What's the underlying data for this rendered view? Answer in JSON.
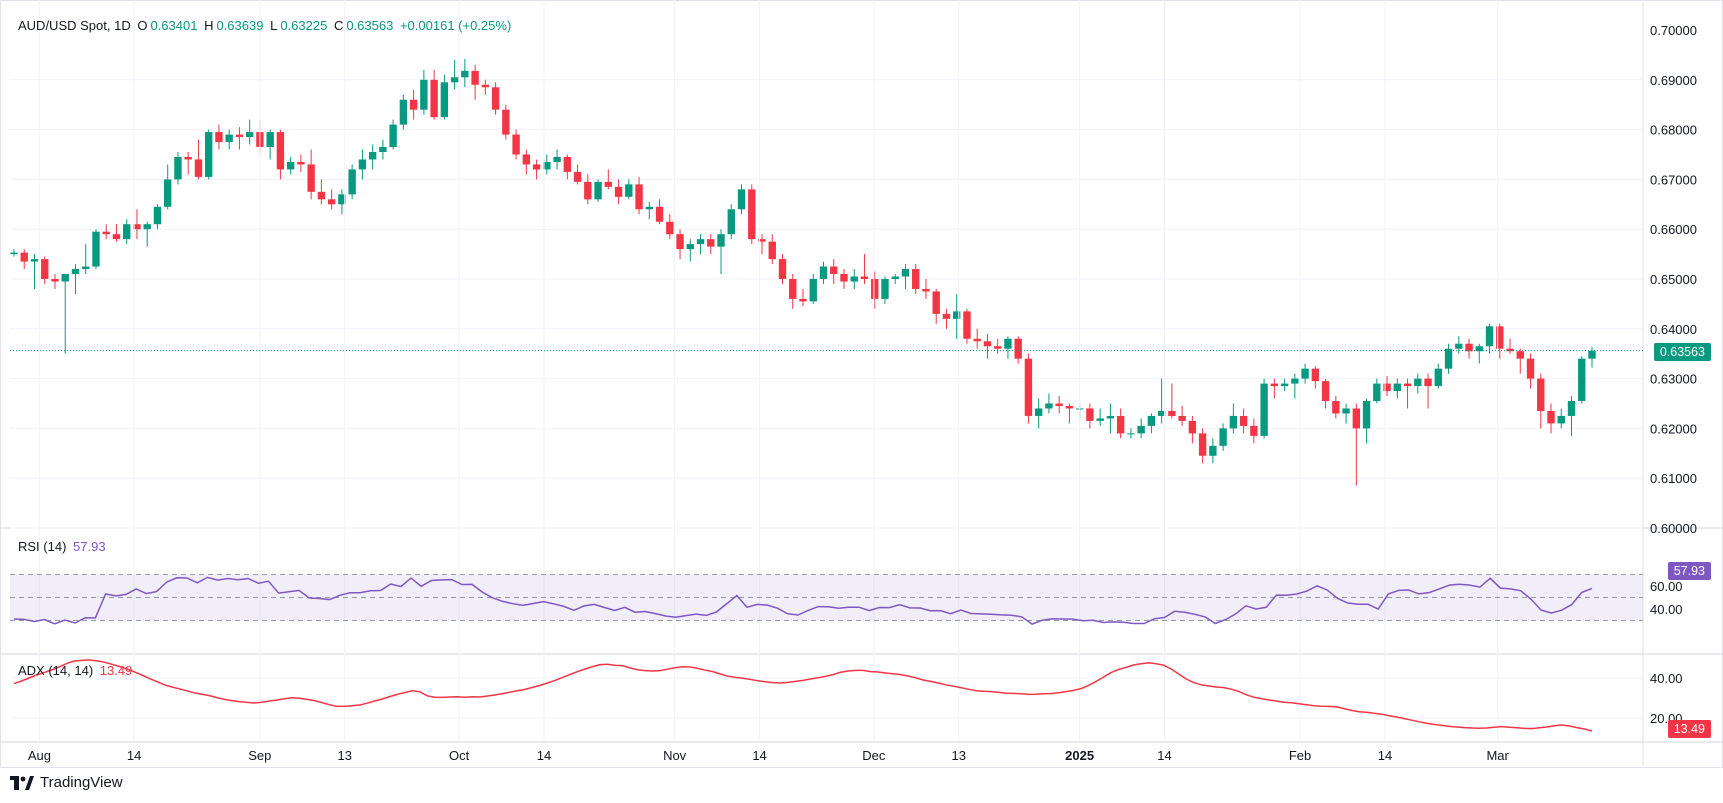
{
  "header": {
    "symbol": "AUD/USD Spot, 1D",
    "open_label": "O",
    "open": "0.63401",
    "high_label": "H",
    "high": "0.63639",
    "low_label": "L",
    "low": "0.63225",
    "close_label": "C",
    "close": "0.63563",
    "change": "+0.00161 (+0.25%)"
  },
  "price_tag": "0.63563",
  "rsi": {
    "label": "RSI (14)",
    "value": "57.93"
  },
  "adx": {
    "label": "ADX (14, 14)",
    "value": "13.49"
  },
  "brand": "TradingView",
  "colors": {
    "up": "#089981",
    "down": "#f23645",
    "rsi": "#7e57c2",
    "adx": "#f23645"
  },
  "chart_data": {
    "type": "candlestick",
    "x_ticks": [
      "Aug",
      "14",
      "Sep",
      "13",
      "Oct",
      "14",
      "Nov",
      "14",
      "Dec",
      "13",
      "2025",
      "14",
      "Feb",
      "14",
      "Mar"
    ],
    "price_axis": [
      "0.70000",
      "0.69000",
      "0.68000",
      "0.67000",
      "0.66000",
      "0.65000",
      "0.64000",
      "0.63000",
      "0.62000",
      "0.61000",
      "0.60000"
    ],
    "price_range": [
      0.6,
      0.7
    ],
    "last_price": 0.63563,
    "rsi_axis": [
      "60.00",
      "40.00"
    ],
    "rsi_bands": [
      30,
      50,
      70
    ],
    "adx_axis": [
      "40.00",
      "20.00"
    ],
    "candles": [
      [
        0.655,
        0.656,
        0.6545,
        0.6553
      ],
      [
        0.6553,
        0.656,
        0.652,
        0.6535
      ],
      [
        0.6535,
        0.655,
        0.648,
        0.654
      ],
      [
        0.654,
        0.6545,
        0.649,
        0.65
      ],
      [
        0.65,
        0.651,
        0.648,
        0.6495
      ],
      [
        0.6495,
        0.6505,
        0.635,
        0.651
      ],
      [
        0.651,
        0.653,
        0.647,
        0.652
      ],
      [
        0.652,
        0.657,
        0.651,
        0.6525
      ],
      [
        0.6525,
        0.66,
        0.652,
        0.6595
      ],
      [
        0.6595,
        0.661,
        0.658,
        0.659
      ],
      [
        0.659,
        0.661,
        0.6575,
        0.658
      ],
      [
        0.658,
        0.662,
        0.657,
        0.661
      ],
      [
        0.661,
        0.664,
        0.658,
        0.66
      ],
      [
        0.66,
        0.6615,
        0.6565,
        0.661
      ],
      [
        0.661,
        0.665,
        0.66,
        0.6645
      ],
      [
        0.6645,
        0.673,
        0.664,
        0.67
      ],
      [
        0.67,
        0.6755,
        0.669,
        0.6745
      ],
      [
        0.6745,
        0.6755,
        0.671,
        0.674
      ],
      [
        0.674,
        0.678,
        0.67,
        0.6705
      ],
      [
        0.6705,
        0.68,
        0.67,
        0.6795
      ],
      [
        0.6795,
        0.681,
        0.676,
        0.6775
      ],
      [
        0.6775,
        0.68,
        0.676,
        0.679
      ],
      [
        0.679,
        0.6805,
        0.676,
        0.6785
      ],
      [
        0.6785,
        0.682,
        0.677,
        0.6795
      ],
      [
        0.6795,
        0.682,
        0.675,
        0.6765
      ],
      [
        0.6765,
        0.68,
        0.674,
        0.6795
      ],
      [
        0.6795,
        0.68,
        0.67,
        0.672
      ],
      [
        0.672,
        0.6745,
        0.671,
        0.6735
      ],
      [
        0.6735,
        0.675,
        0.6715,
        0.673
      ],
      [
        0.673,
        0.676,
        0.666,
        0.6675
      ],
      [
        0.6675,
        0.67,
        0.665,
        0.666
      ],
      [
        0.666,
        0.668,
        0.664,
        0.665
      ],
      [
        0.665,
        0.668,
        0.663,
        0.667
      ],
      [
        0.667,
        0.673,
        0.666,
        0.672
      ],
      [
        0.672,
        0.676,
        0.67,
        0.674
      ],
      [
        0.674,
        0.677,
        0.672,
        0.6755
      ],
      [
        0.6755,
        0.678,
        0.674,
        0.6765
      ],
      [
        0.6765,
        0.682,
        0.676,
        0.681
      ],
      [
        0.681,
        0.687,
        0.68,
        0.686
      ],
      [
        0.686,
        0.688,
        0.682,
        0.684
      ],
      [
        0.684,
        0.692,
        0.683,
        0.69
      ],
      [
        0.69,
        0.692,
        0.682,
        0.6825
      ],
      [
        0.6825,
        0.691,
        0.682,
        0.6895
      ],
      [
        0.6895,
        0.694,
        0.688,
        0.6905
      ],
      [
        0.6905,
        0.6942,
        0.6885,
        0.6918
      ],
      [
        0.6918,
        0.693,
        0.686,
        0.689
      ],
      [
        0.689,
        0.69,
        0.687,
        0.6885
      ],
      [
        0.6885,
        0.6895,
        0.683,
        0.684
      ],
      [
        0.684,
        0.685,
        0.678,
        0.679
      ],
      [
        0.679,
        0.68,
        0.674,
        0.675
      ],
      [
        0.675,
        0.676,
        0.671,
        0.673
      ],
      [
        0.673,
        0.674,
        0.67,
        0.672
      ],
      [
        0.672,
        0.675,
        0.671,
        0.6735
      ],
      [
        0.6735,
        0.676,
        0.672,
        0.6745
      ],
      [
        0.6745,
        0.675,
        0.67,
        0.6715
      ],
      [
        0.6715,
        0.673,
        0.669,
        0.6695
      ],
      [
        0.6695,
        0.671,
        0.665,
        0.666
      ],
      [
        0.666,
        0.67,
        0.6655,
        0.6695
      ],
      [
        0.6695,
        0.672,
        0.668,
        0.6685
      ],
      [
        0.6685,
        0.67,
        0.665,
        0.6665
      ],
      [
        0.6665,
        0.67,
        0.666,
        0.669
      ],
      [
        0.669,
        0.6705,
        0.663,
        0.664
      ],
      [
        0.664,
        0.6655,
        0.662,
        0.6645
      ],
      [
        0.6645,
        0.666,
        0.661,
        0.6615
      ],
      [
        0.6615,
        0.663,
        0.658,
        0.659
      ],
      [
        0.659,
        0.66,
        0.654,
        0.656
      ],
      [
        0.656,
        0.658,
        0.6535,
        0.657
      ],
      [
        0.657,
        0.659,
        0.655,
        0.658
      ],
      [
        0.658,
        0.659,
        0.655,
        0.6565
      ],
      [
        0.6565,
        0.66,
        0.651,
        0.659
      ],
      [
        0.659,
        0.665,
        0.658,
        0.664
      ],
      [
        0.664,
        0.669,
        0.663,
        0.668
      ],
      [
        0.668,
        0.669,
        0.657,
        0.658
      ],
      [
        0.658,
        0.659,
        0.655,
        0.6575
      ],
      [
        0.6575,
        0.659,
        0.653,
        0.654
      ],
      [
        0.654,
        0.655,
        0.649,
        0.65
      ],
      [
        0.65,
        0.651,
        0.644,
        0.646
      ],
      [
        0.646,
        0.648,
        0.6445,
        0.6455
      ],
      [
        0.6455,
        0.651,
        0.645,
        0.65
      ],
      [
        0.65,
        0.6535,
        0.649,
        0.6525
      ],
      [
        0.6525,
        0.654,
        0.649,
        0.651
      ],
      [
        0.651,
        0.652,
        0.648,
        0.6495
      ],
      [
        0.6495,
        0.652,
        0.648,
        0.6505
      ],
      [
        0.6505,
        0.655,
        0.649,
        0.65
      ],
      [
        0.65,
        0.6515,
        0.644,
        0.646
      ],
      [
        0.646,
        0.6505,
        0.645,
        0.65
      ],
      [
        0.65,
        0.651,
        0.649,
        0.6505
      ],
      [
        0.6505,
        0.653,
        0.648,
        0.652
      ],
      [
        0.652,
        0.653,
        0.647,
        0.648
      ],
      [
        0.648,
        0.65,
        0.646,
        0.6475
      ],
      [
        0.6475,
        0.648,
        0.641,
        0.643
      ],
      [
        0.643,
        0.644,
        0.64,
        0.642
      ],
      [
        0.642,
        0.647,
        0.638,
        0.6435
      ],
      [
        0.6435,
        0.644,
        0.637,
        0.638
      ],
      [
        0.638,
        0.64,
        0.636,
        0.6375
      ],
      [
        0.6375,
        0.639,
        0.634,
        0.6365
      ],
      [
        0.6365,
        0.638,
        0.635,
        0.636
      ],
      [
        0.636,
        0.6385,
        0.634,
        0.638
      ],
      [
        0.638,
        0.6385,
        0.633,
        0.634
      ],
      [
        0.634,
        0.635,
        0.621,
        0.6225
      ],
      [
        0.6225,
        0.626,
        0.62,
        0.624
      ],
      [
        0.624,
        0.627,
        0.623,
        0.625
      ],
      [
        0.625,
        0.6265,
        0.623,
        0.6245
      ],
      [
        0.6245,
        0.625,
        0.621,
        0.624
      ],
      [
        0.624,
        0.625,
        0.622,
        0.624
      ],
      [
        0.624,
        0.625,
        0.62,
        0.6215
      ],
      [
        0.6215,
        0.624,
        0.6205,
        0.622
      ],
      [
        0.622,
        0.625,
        0.619,
        0.6225
      ],
      [
        0.6225,
        0.624,
        0.618,
        0.619
      ],
      [
        0.619,
        0.62,
        0.618,
        0.619
      ],
      [
        0.619,
        0.622,
        0.618,
        0.6205
      ],
      [
        0.6205,
        0.623,
        0.619,
        0.6225
      ],
      [
        0.6225,
        0.63,
        0.621,
        0.6235
      ],
      [
        0.6235,
        0.629,
        0.622,
        0.6225
      ],
      [
        0.6225,
        0.6245,
        0.6205,
        0.6215
      ],
      [
        0.6215,
        0.6225,
        0.617,
        0.619
      ],
      [
        0.619,
        0.62,
        0.613,
        0.6145
      ],
      [
        0.6145,
        0.618,
        0.613,
        0.6165
      ],
      [
        0.6165,
        0.621,
        0.6155,
        0.62
      ],
      [
        0.62,
        0.625,
        0.619,
        0.6225
      ],
      [
        0.6225,
        0.624,
        0.619,
        0.6205
      ],
      [
        0.6205,
        0.622,
        0.617,
        0.6185
      ],
      [
        0.6185,
        0.63,
        0.618,
        0.629
      ],
      [
        0.629,
        0.63,
        0.626,
        0.6285
      ],
      [
        0.6285,
        0.63,
        0.6275,
        0.629
      ],
      [
        0.629,
        0.631,
        0.626,
        0.63
      ],
      [
        0.63,
        0.633,
        0.629,
        0.632
      ],
      [
        0.632,
        0.6325,
        0.628,
        0.6295
      ],
      [
        0.6295,
        0.63,
        0.624,
        0.6255
      ],
      [
        0.6255,
        0.6265,
        0.622,
        0.623
      ],
      [
        0.623,
        0.625,
        0.621,
        0.624
      ],
      [
        0.624,
        0.625,
        0.6085,
        0.62
      ],
      [
        0.62,
        0.626,
        0.617,
        0.6255
      ],
      [
        0.6255,
        0.63,
        0.625,
        0.629
      ],
      [
        0.629,
        0.6305,
        0.6265,
        0.6275
      ],
      [
        0.6275,
        0.63,
        0.626,
        0.629
      ],
      [
        0.629,
        0.63,
        0.624,
        0.6285
      ],
      [
        0.6285,
        0.631,
        0.627,
        0.63
      ],
      [
        0.63,
        0.631,
        0.624,
        0.6285
      ],
      [
        0.6285,
        0.633,
        0.628,
        0.632
      ],
      [
        0.632,
        0.637,
        0.631,
        0.636
      ],
      [
        0.636,
        0.6385,
        0.635,
        0.637
      ],
      [
        0.637,
        0.638,
        0.634,
        0.6355
      ],
      [
        0.6355,
        0.637,
        0.633,
        0.6365
      ],
      [
        0.6365,
        0.641,
        0.635,
        0.6405
      ],
      [
        0.6405,
        0.641,
        0.634,
        0.636
      ],
      [
        0.636,
        0.638,
        0.635,
        0.6355
      ],
      [
        0.6355,
        0.636,
        0.631,
        0.634
      ],
      [
        0.634,
        0.635,
        0.628,
        0.63
      ],
      [
        0.63,
        0.631,
        0.62,
        0.6235
      ],
      [
        0.6235,
        0.625,
        0.619,
        0.621
      ],
      [
        0.621,
        0.624,
        0.62,
        0.6225
      ],
      [
        0.6225,
        0.6265,
        0.6185,
        0.6255
      ],
      [
        0.6255,
        0.6345,
        0.625,
        0.634
      ],
      [
        0.634,
        0.6364,
        0.6322,
        0.6356
      ]
    ],
    "rsi": [
      31.3,
      31.0,
      29.1,
      30.9,
      27.1,
      30.4,
      27.8,
      32.4,
      32.3,
      53.0,
      51.4,
      52.7,
      57.4,
      53.4,
      55.1,
      63.4,
      67.1,
      67.0,
      62.8,
      67.5,
      65.1,
      66.5,
      65.5,
      66.5,
      62.4,
      64.1,
      53.8,
      55.0,
      56.2,
      49.6,
      49.1,
      48.2,
      51.9,
      54.2,
      54.2,
      55.8,
      56.1,
      61.7,
      59.5,
      66.9,
      59.7,
      64.8,
      65.3,
      65.6,
      61.3,
      61.4,
      54.7,
      49.7,
      46.6,
      44.6,
      43.1,
      44.8,
      46.4,
      44.5,
      42.3,
      38.9,
      42.7,
      44.0,
      41.3,
      38.7,
      41.5,
      37.2,
      37.8,
      36.0,
      33.9,
      32.8,
      34.3,
      35.6,
      34.4,
      37.5,
      44.4,
      51.7,
      41.5,
      44.0,
      43.4,
      40.7,
      35.8,
      34.8,
      38.8,
      42.1,
      41.9,
      40.6,
      41.5,
      41.6,
      38.6,
      41.3,
      41.2,
      43.7,
      41.0,
      40.9,
      38.5,
      38.6,
      35.9,
      39.0,
      36.1,
      35.7,
      35.5,
      34.9,
      34.6,
      33.1,
      26.9,
      30.3,
      31.5,
      31.3,
      31.2,
      29.7,
      30.2,
      28.3,
      28.8,
      28.5,
      27.4,
      27.4,
      31.5,
      32.6,
      38.0,
      37.1,
      35.4,
      33.1,
      27.4,
      30.8,
      35.7,
      42.8,
      40.0,
      41.5,
      52.1,
      52.0,
      53.0,
      55.6,
      60.2,
      56.4,
      49.3,
      45.2,
      44.1,
      44.2,
      40.0,
      53.1,
      56.2,
      56.5,
      53.1,
      54.3,
      57.5,
      60.8,
      61.6,
      60.8,
      59.0,
      66.7,
      58.2,
      57.5,
      55.8,
      48.7,
      39.0,
      36.5,
      38.9,
      43.7,
      54.4,
      57.9
    ],
    "adx": [
      37.2,
      38.5,
      40.0,
      41.5,
      42.7,
      44.0,
      45.5,
      47.2,
      48.5,
      48.8,
      49.0,
      48.6,
      47.9,
      46.9,
      45.8,
      44.6,
      43.1,
      41.5,
      39.8,
      38.2,
      36.6,
      35.5,
      34.6,
      33.6,
      32.6,
      31.9,
      31.2,
      30.2,
      29.3,
      28.7,
      28.2,
      27.8,
      27.5,
      27.9,
      28.5,
      29.0,
      29.6,
      30.1,
      29.9,
      29.3,
      28.7,
      27.7,
      26.6,
      25.8,
      25.9,
      26.1,
      26.5,
      27.4,
      28.5,
      29.5,
      30.7,
      31.8,
      32.7,
      33.7,
      33.1,
      31.1,
      30.4,
      30.3,
      30.5,
      30.6,
      30.4,
      30.6,
      30.5,
      31.0,
      31.5,
      32.2,
      32.9,
      33.6,
      34.3,
      35.3,
      36.3,
      37.5,
      38.8,
      40.3,
      41.8,
      43.2,
      44.5,
      45.7,
      46.7,
      46.9,
      46.3,
      46.2,
      45.0,
      44.1,
      43.7,
      43.5,
      43.7,
      44.4,
      45.2,
      45.6,
      45.5,
      44.8,
      43.9,
      43.2,
      42.0,
      40.9,
      40.3,
      39.9,
      39.3,
      38.6,
      38.1,
      37.7,
      37.5,
      37.8,
      38.3,
      38.8,
      39.5,
      40.1,
      40.8,
      41.7,
      42.9,
      43.5,
      43.8,
      43.8,
      43.2,
      43.0,
      42.5,
      42.1,
      41.7,
      41.0,
      40.1,
      39.0,
      38.3,
      37.5,
      36.6,
      35.9,
      35.2,
      34.4,
      33.7,
      33.4,
      33.2,
      32.9,
      32.4,
      32.3,
      32.1,
      31.8,
      31.9,
      32.1,
      32.2,
      32.6,
      33.2,
      33.8,
      34.7,
      36.3,
      38.3,
      40.5,
      42.7,
      44.3,
      45.3,
      46.5,
      47.1,
      47.6,
      47.1,
      46.4,
      44.5,
      42.0,
      39.5,
      37.7,
      36.6,
      36.0,
      35.5,
      35.2,
      34.4,
      33.3,
      31.6,
      30.4,
      29.7,
      29.0,
      28.5,
      27.9,
      27.6,
      27.1,
      26.6,
      26.1,
      25.9,
      25.8,
      25.6,
      24.7,
      23.8,
      23.1,
      22.9,
      22.4,
      21.9,
      21.1,
      20.5,
      19.7,
      18.9,
      18.1,
      17.4,
      16.8,
      16.3,
      15.8,
      15.5,
      15.2,
      15.0,
      14.9,
      15.0,
      15.4,
      15.7,
      15.4,
      15.1,
      14.8,
      14.7,
      15.1,
      15.5,
      16.1,
      16.5,
      16.0,
      15.2,
      14.5,
      13.49
    ]
  }
}
